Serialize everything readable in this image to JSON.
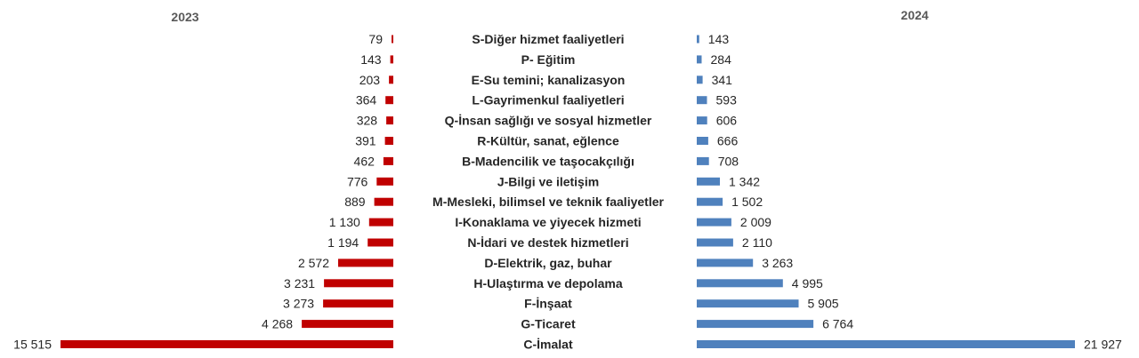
{
  "chart_data": {
    "type": "bar",
    "orientation": "horizontal-butterfly",
    "left_year": "2023",
    "right_year": "2024",
    "colors": {
      "left": "#C00000",
      "right": "#4F81BD"
    },
    "categories": [
      "S-Diğer hizmet faaliyetleri",
      "P- Eğitim",
      "E-Su temini; kanalizasyon",
      "L-Gayrimenkul faaliyetleri",
      "Q-İnsan sağlığı ve sosyal hizmetler",
      "R-Kültür, sanat, eğlence",
      "B-Madencilik ve taşocakçılığı",
      "J-Bilgi ve iletişim",
      "M-Mesleki, bilimsel ve teknik faaliyetler",
      "I-Konaklama ve yiyecek hizmeti",
      "N-İdari ve destek hizmetleri",
      "D-Elektrik, gaz, buhar",
      "H-Ulaştırma ve depolama",
      "F-İnşaat",
      "G-Ticaret",
      "C-İmalat"
    ],
    "series": [
      {
        "name": "2023",
        "values": [
          79,
          143,
          203,
          364,
          328,
          391,
          462,
          776,
          889,
          1130,
          1194,
          2572,
          3231,
          3273,
          4268,
          15515
        ],
        "labels": [
          "79",
          "143",
          "203",
          "364",
          "328",
          "391",
          "462",
          "776",
          "889",
          "1 130",
          "1 194",
          "2 572",
          "3 231",
          "3 273",
          "4 268",
          "15 515"
        ]
      },
      {
        "name": "2024",
        "values": [
          143,
          284,
          341,
          593,
          606,
          666,
          708,
          1342,
          1502,
          2009,
          2110,
          3263,
          4995,
          5905,
          6764,
          21927
        ],
        "labels": [
          "143",
          "284",
          "341",
          "593",
          "606",
          "666",
          "708",
          "1 342",
          "1 502",
          "2 009",
          "2 110",
          "3 263",
          "4 995",
          "5 905",
          "6 764",
          "21 927"
        ]
      }
    ]
  }
}
